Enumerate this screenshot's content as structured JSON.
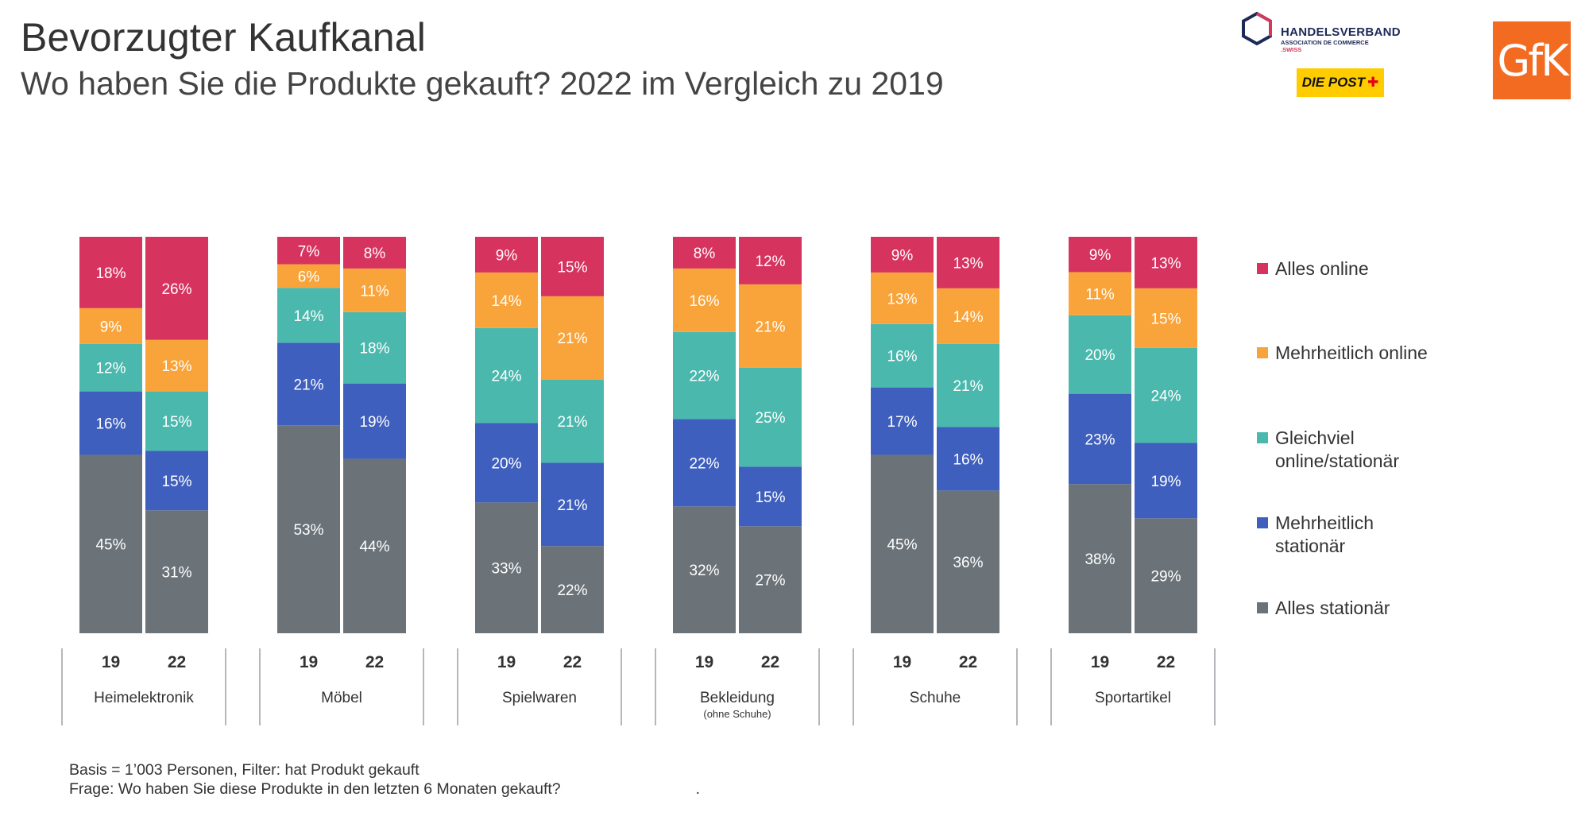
{
  "header": {
    "title": "Bevorzugter Kaufkanal",
    "subtitle": "Wo haben Sie die Produkte gekauft? 2022 im Vergleich zu 2019"
  },
  "logos": {
    "handelsverband": {
      "name": "HANDELSVERBAND",
      "sub": "ASSOCIATION DE COMMERCE",
      "suffix": ".SWISS"
    },
    "post": "DIE POST",
    "gfk": "GfK"
  },
  "footnote": {
    "line1": "Basis = 1’003 Personen, Filter: hat Produkt gekauft",
    "line2": "Frage: Wo haben Sie diese Produkte in den letzten 6 Monaten gekauft?",
    "trailing_mark": "."
  },
  "chart_data": {
    "type": "bar",
    "stacked": true,
    "normalized_percent": true,
    "title": "Bevorzugter Kaufkanal",
    "subtitle": "Wo haben Sie die Produkte gekauft? 2022 im Vergleich zu 2019",
    "legend_position": "right",
    "grid": false,
    "segment_labels_suffix": "%",
    "years": [
      "19",
      "22"
    ],
    "groups": [
      {
        "name": "Heimelektronik",
        "note": ""
      },
      {
        "name": "Möbel",
        "note": ""
      },
      {
        "name": "Spielwaren",
        "note": ""
      },
      {
        "name": "Bekleidung",
        "note": "(ohne Schuhe)"
      },
      {
        "name": "Schuhe",
        "note": ""
      },
      {
        "name": "Sportartikel",
        "note": ""
      }
    ],
    "series": [
      {
        "name": "Alles stationär",
        "color": "#6b7379",
        "values_19": [
          45,
          53,
          33,
          32,
          45,
          38
        ],
        "values_22": [
          31,
          44,
          22,
          27,
          36,
          29
        ]
      },
      {
        "name": "Mehrheitlich stationär",
        "color": "#3e5fbd",
        "values_19": [
          16,
          21,
          20,
          22,
          17,
          23
        ],
        "values_22": [
          15,
          19,
          21,
          15,
          16,
          19
        ]
      },
      {
        "name": "Gleichviel online/stationär",
        "color": "#4bb8ae",
        "values_19": [
          12,
          14,
          24,
          22,
          16,
          20
        ],
        "values_22": [
          15,
          18,
          21,
          25,
          21,
          24
        ]
      },
      {
        "name": "Mehrheitlich online",
        "color": "#f9a43a",
        "values_19": [
          9,
          6,
          14,
          16,
          13,
          11
        ],
        "values_22": [
          13,
          11,
          21,
          21,
          14,
          15
        ]
      },
      {
        "name": "Alles online",
        "color": "#d6335f",
        "values_19": [
          18,
          7,
          9,
          8,
          9,
          9
        ],
        "values_22": [
          26,
          8,
          15,
          12,
          13,
          13
        ]
      }
    ],
    "legend": [
      {
        "name": "Alles online",
        "lines": [
          "Alles online"
        ],
        "color": "#d6335f"
      },
      {
        "name": "Mehrheitlich online",
        "lines": [
          "Mehrheitlich online"
        ],
        "color": "#f9a43a"
      },
      {
        "name": "Gleichviel online/stationär",
        "lines": [
          "Gleichviel",
          "online/stationär"
        ],
        "color": "#4bb8ae"
      },
      {
        "name": "Mehrheitlich stationär",
        "lines": [
          "Mehrheitlich",
          "stationär"
        ],
        "color": "#3e5fbd"
      },
      {
        "name": "Alles stationär",
        "lines": [
          "Alles stationär"
        ],
        "color": "#6b7379"
      }
    ]
  }
}
